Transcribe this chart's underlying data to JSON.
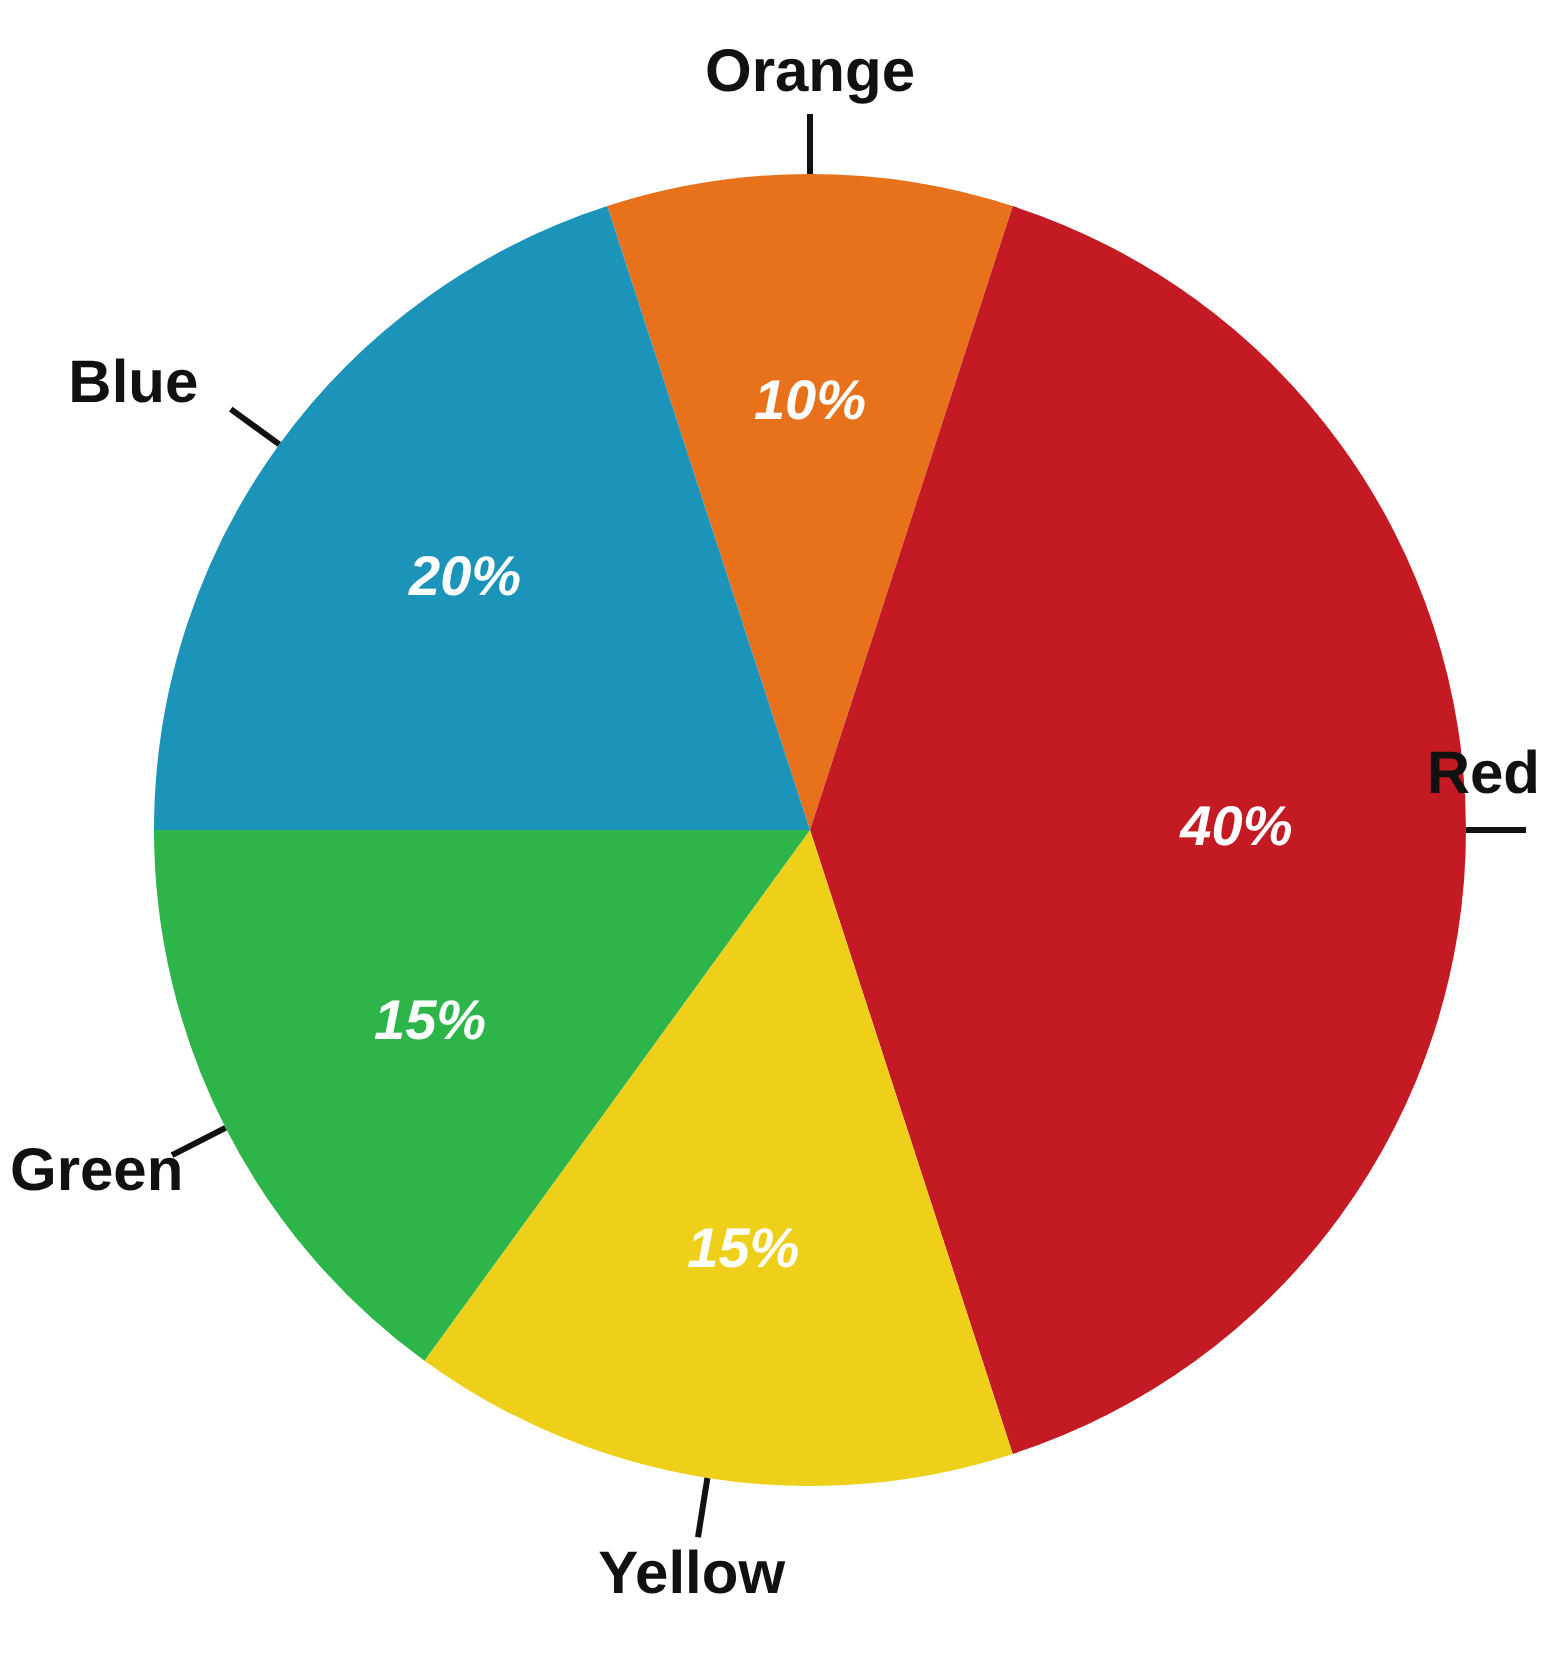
{
  "chart_data": {
    "type": "pie",
    "categories": [
      "Orange",
      "Red",
      "Yellow",
      "Green",
      "Blue"
    ],
    "values": [
      10,
      40,
      15,
      15,
      20
    ],
    "colors": [
      "#e8711c",
      "#c41a24",
      "#eecf1a",
      "#2db54a",
      "#1c93b8"
    ],
    "value_labels": [
      "10%",
      "40%",
      "15%",
      "15%",
      "20%"
    ]
  }
}
